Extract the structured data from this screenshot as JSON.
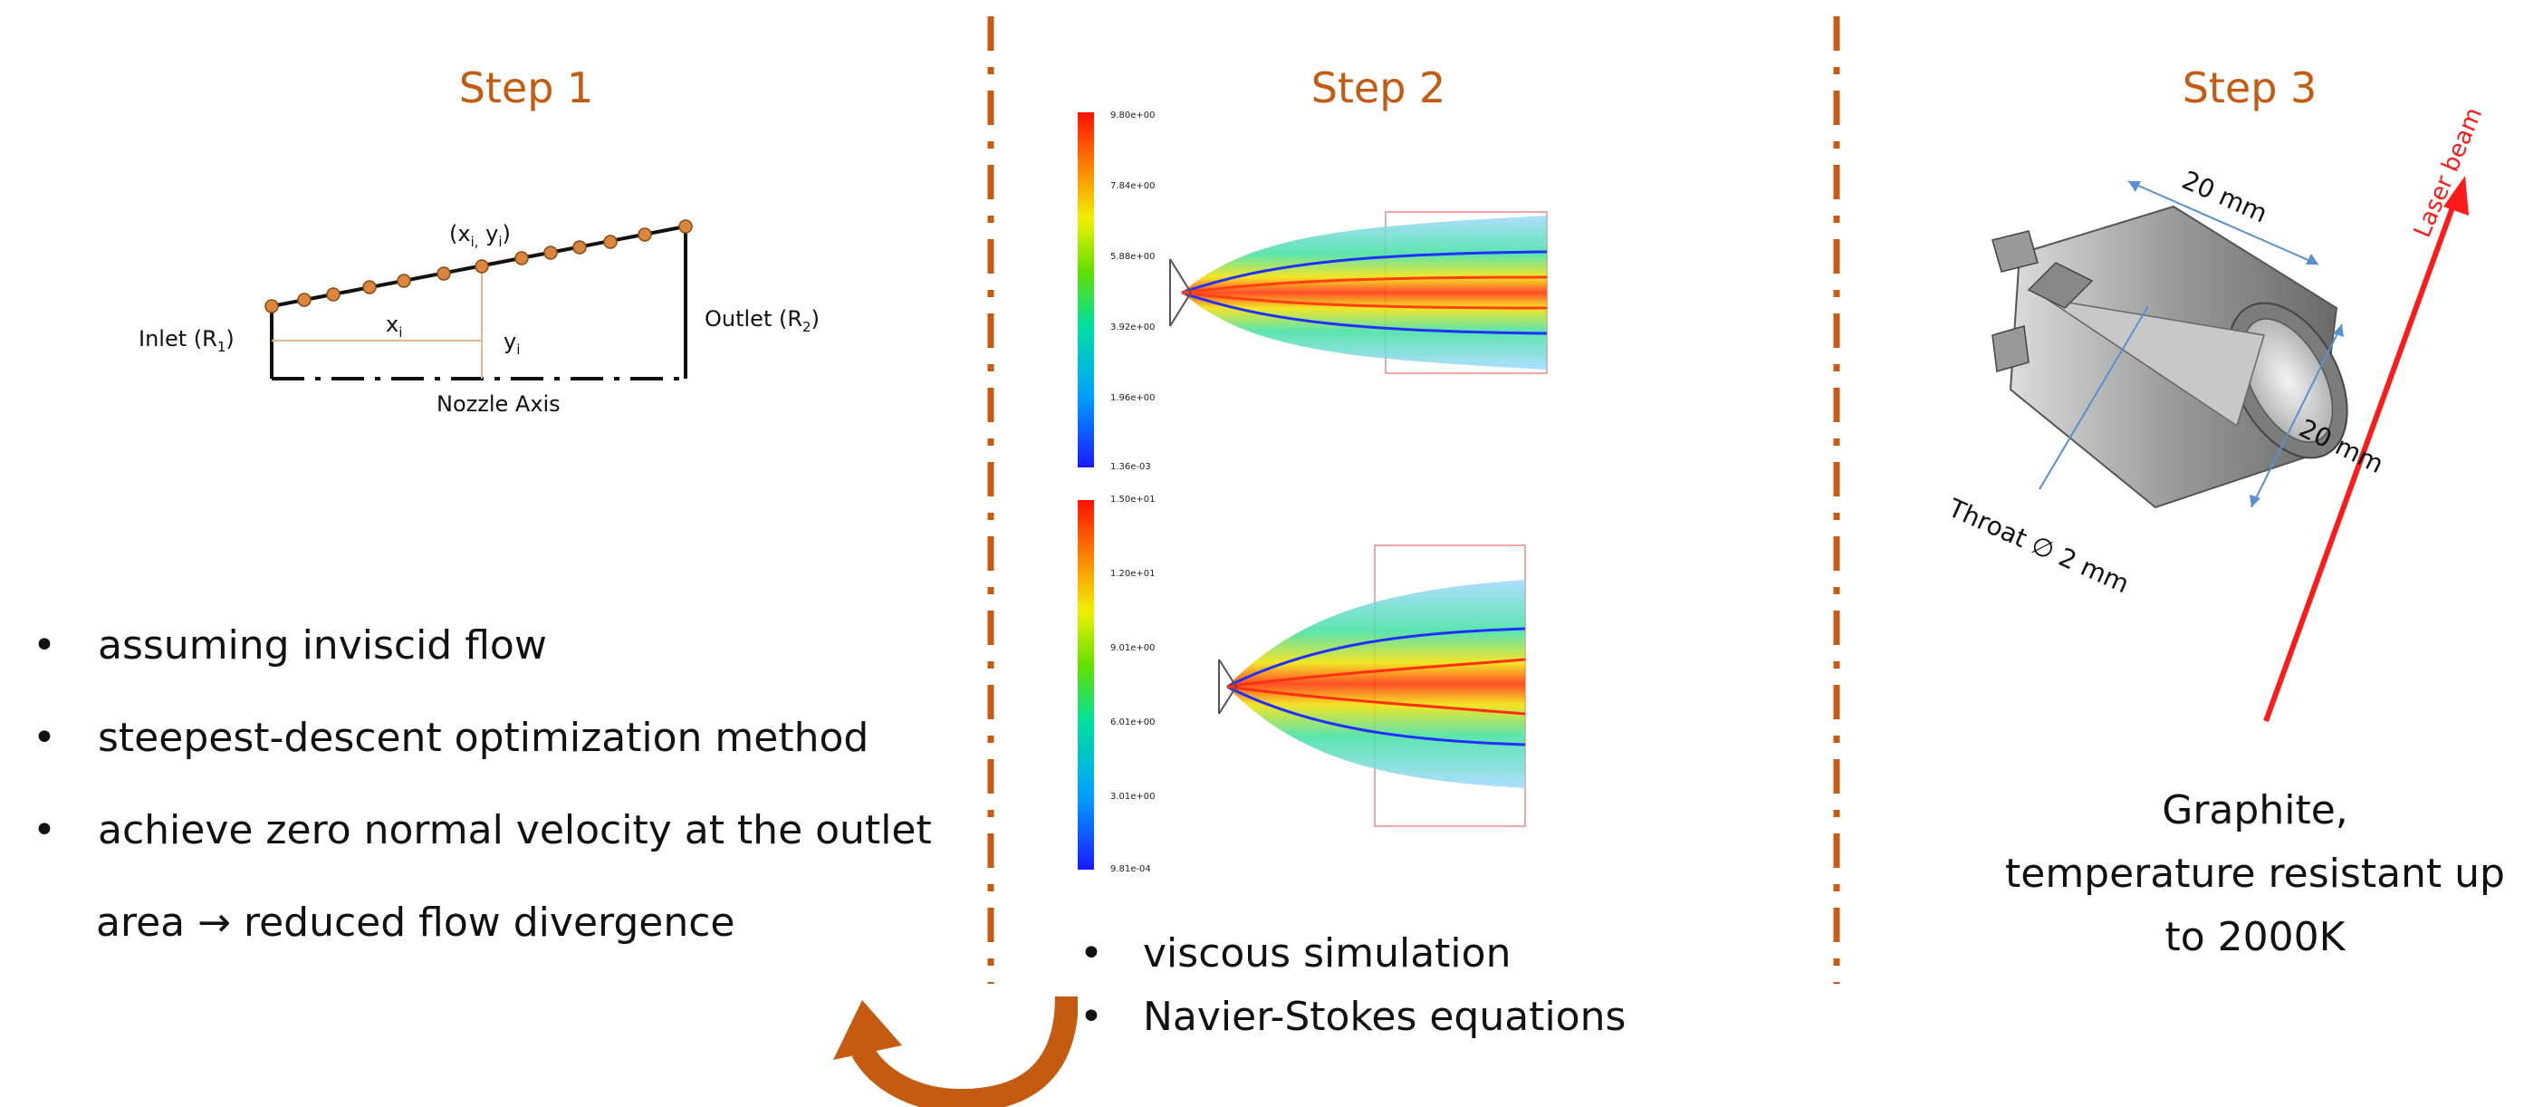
{
  "colors": {
    "accent": "#C55A11",
    "laser": "#FF1A1A"
  },
  "steps": [
    {
      "title": "Step 1"
    },
    {
      "title": "Step 2"
    },
    {
      "title": "Step 3"
    }
  ],
  "step1": {
    "point_label": "(x",
    "point_label_sub_i": "i,",
    "point_label_y": " y",
    "point_label_y_sub": "i",
    "point_label_close": ")",
    "inlet_label": "Inlet (R",
    "inlet_sub": "1",
    "inlet_close": ")",
    "outlet_label": "Outlet (R",
    "outlet_sub": "2",
    "outlet_close": ")",
    "x_label": "x",
    "x_sub": "i",
    "y_label": "y",
    "y_sub": "i",
    "axis_label": "Nozzle Axis",
    "bullets": [
      "assuming inviscid flow",
      "steepest-descent optimization method",
      "achieve zero normal velocity at the outlet",
      "area → reduced flow divergence"
    ]
  },
  "step2": {
    "colorbar_top": [
      "9.80e+00",
      "7.84e+00",
      "5.88e+00",
      "3.92e+00",
      "1.96e+00",
      "1.36e-03"
    ],
    "colorbar_bottom": [
      "1.50e+01",
      "1.20e+01",
      "9.01e+00",
      "6.01e+00",
      "3.01e+00",
      "9.81e-04"
    ],
    "bullets": [
      "viscous simulation",
      "Navier-Stokes equations"
    ]
  },
  "step3": {
    "dim_top": "20 mm",
    "dim_side": "20 mm",
    "throat": "Throat ∅ 2 mm",
    "laser": "Laser beam",
    "material_lines": [
      "Graphite,",
      "temperature resistant up",
      "to 2000K"
    ]
  }
}
